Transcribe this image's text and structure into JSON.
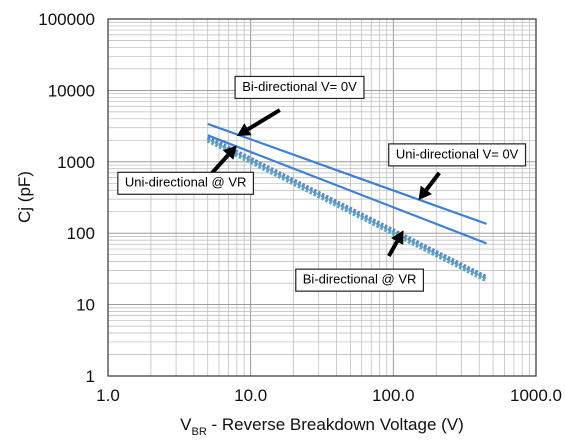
{
  "chart_data": {
    "type": "line",
    "title": "",
    "xlabel": {
      "main": "V",
      "subscript": "BR",
      "rest": " - Reverse Breakdown Voltage (V)"
    },
    "ylabel": "Cj (pF)",
    "x_scale": "log",
    "y_scale": "log",
    "xlim": [
      1,
      1000
    ],
    "ylim": [
      1,
      100000
    ],
    "x_ticks": [
      1,
      10,
      100,
      1000
    ],
    "x_tick_labels": [
      "1.0",
      "10.0",
      "100.0",
      "1000.0"
    ],
    "y_ticks": [
      1,
      10,
      100,
      1000,
      10000,
      100000
    ],
    "y_tick_labels": [
      "1",
      "10",
      "100",
      "1000",
      "10000",
      "100000"
    ],
    "grid": true,
    "series": [
      {
        "name": "Bi-directional V= 0V",
        "style": "solid",
        "color": "#3b7fd9",
        "points": [
          [
            5,
            3400
          ],
          [
            450,
            135
          ]
        ]
      },
      {
        "name": "Uni-directional V= 0V",
        "style": "solid",
        "color": "#3b7fd9",
        "points": [
          [
            5,
            2350
          ],
          [
            450,
            72
          ]
        ]
      },
      {
        "name": "Uni-directional @ VR",
        "style": "dotted",
        "color": "#5b86c7",
        "points": [
          [
            5,
            2200
          ],
          [
            450,
            24
          ]
        ]
      },
      {
        "name": "Bi-directional @ VR",
        "style": "dotted",
        "color": "#5aa5c2",
        "points": [
          [
            5,
            2000
          ],
          [
            450,
            22
          ]
        ]
      }
    ],
    "annotations": [
      {
        "text": "Bi-directional V= 0V",
        "box_at": [
          22,
          11000
        ],
        "arrow_from": [
          16,
          5300
        ],
        "arrow_to": [
          8,
          2300
        ]
      },
      {
        "text": "Uni-directional V= 0V",
        "box_at": [
          280,
          1250
        ],
        "arrow_from": [
          210,
          700
        ],
        "arrow_to": [
          150,
          290
        ]
      },
      {
        "text": "Uni-directional @ VR",
        "box_at": [
          3.5,
          500
        ],
        "arrow_from": [
          5.3,
          680
        ],
        "arrow_to": [
          8,
          1700
        ]
      },
      {
        "text": "Bi-directional @ VR",
        "box_at": [
          58,
          22
        ],
        "arrow_from": [
          93,
          48
        ],
        "arrow_to": [
          118,
          110
        ]
      }
    ]
  }
}
